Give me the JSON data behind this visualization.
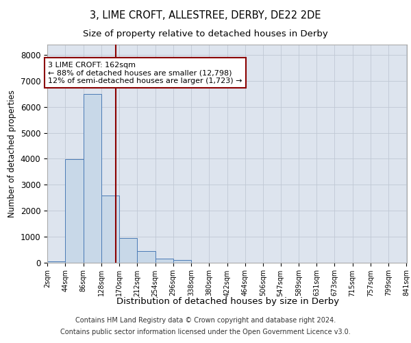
{
  "title1": "3, LIME CROFT, ALLESTREE, DERBY, DE22 2DE",
  "title2": "Size of property relative to detached houses in Derby",
  "xlabel": "Distribution of detached houses by size in Derby",
  "ylabel": "Number of detached properties",
  "footnote1": "Contains HM Land Registry data © Crown copyright and database right 2024.",
  "footnote2": "Contains public sector information licensed under the Open Government Licence v3.0.",
  "annotation_line1": "3 LIME CROFT: 162sqm",
  "annotation_line2": "← 88% of detached houses are smaller (12,798)",
  "annotation_line3": "12% of semi-detached houses are larger (1,723) →",
  "property_size": 162,
  "bin_width": 42,
  "bin_starts": [
    2,
    44,
    86,
    128,
    170,
    212,
    254,
    296,
    338,
    380,
    422,
    464,
    506,
    547,
    589,
    631,
    673,
    715,
    757,
    799
  ],
  "bin_labels": [
    "2sqm",
    "44sqm",
    "86sqm",
    "128sqm",
    "170sqm",
    "212sqm",
    "254sqm",
    "296sqm",
    "338sqm",
    "380sqm",
    "422sqm",
    "464sqm",
    "506sqm",
    "547sqm",
    "589sqm",
    "631sqm",
    "673sqm",
    "715sqm",
    "757sqm",
    "799sqm",
    "841sqm"
  ],
  "bar_heights": [
    30,
    3980,
    6490,
    2580,
    950,
    430,
    150,
    100,
    0,
    0,
    0,
    0,
    0,
    0,
    0,
    0,
    0,
    0,
    0,
    0
  ],
  "bar_color": "#c8d8e8",
  "bar_edge_color": "#4a7ab5",
  "vline_color": "#8b0000",
  "annotation_box_color": "#8b0000",
  "grid_color": "#c0c8d4",
  "bg_color": "#dde4ee",
  "ylim": [
    0,
    8400
  ],
  "yticks": [
    0,
    1000,
    2000,
    3000,
    4000,
    5000,
    6000,
    7000,
    8000
  ]
}
